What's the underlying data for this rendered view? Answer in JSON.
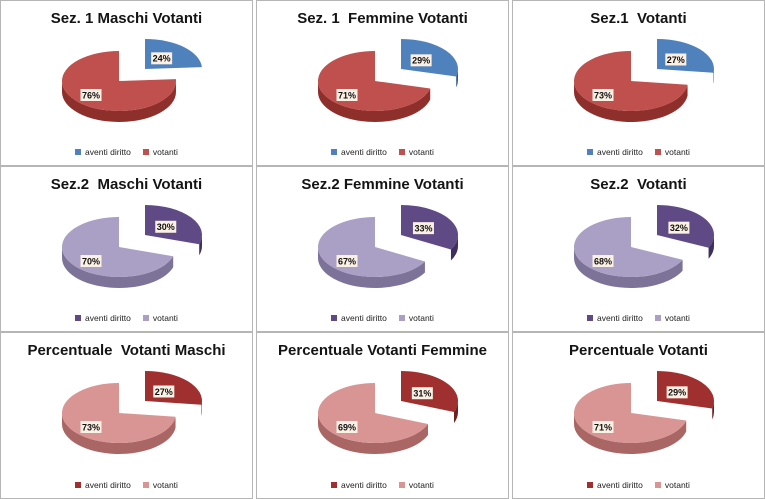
{
  "colors": {
    "row1": {
      "aventi": "#4f81bd",
      "aventi_side": "#2f5a8c",
      "votanti": "#c0504d",
      "votanti_side": "#8f2f2c"
    },
    "row2": {
      "aventi": "#604a86",
      "aventi_side": "#3f2f5c",
      "votanti": "#aa9fc5",
      "votanti_side": "#7d7398"
    },
    "row3": {
      "aventi": "#a0302f",
      "aventi_side": "#6f1f1e",
      "votanti": "#d99594",
      "votanti_side": "#a96665"
    }
  },
  "chart_data": [
    {
      "type": "pie",
      "title": "Sez. 1 Maschi Votanti",
      "categories": [
        "aventi diritto",
        "votanti"
      ],
      "values": [
        24,
        76
      ],
      "labels": [
        "24%",
        "76%"
      ],
      "palette": "row1"
    },
    {
      "type": "pie",
      "title": "Sez. 1  Femmine Votanti",
      "categories": [
        "aventi diritto",
        "votanti"
      ],
      "values": [
        29,
        71
      ],
      "labels": [
        "29%",
        "71%"
      ],
      "palette": "row1"
    },
    {
      "type": "pie",
      "title": "Sez.1  Votanti",
      "categories": [
        "aventi diritto",
        "votanti"
      ],
      "values": [
        27,
        73
      ],
      "labels": [
        "27%",
        "73%"
      ],
      "palette": "row1"
    },
    {
      "type": "pie",
      "title": "Sez.2  Maschi Votanti",
      "categories": [
        "aventi diritto",
        "votanti"
      ],
      "values": [
        30,
        70
      ],
      "labels": [
        "30%",
        "70%"
      ],
      "palette": "row2"
    },
    {
      "type": "pie",
      "title": "Sez.2 Femmine Votanti",
      "categories": [
        "aventi diritto",
        "votanti"
      ],
      "values": [
        33,
        67
      ],
      "labels": [
        "33%",
        "67%"
      ],
      "palette": "row2"
    },
    {
      "type": "pie",
      "title": "Sez.2  Votanti",
      "categories": [
        "aventi diritto",
        "votanti"
      ],
      "values": [
        32,
        68
      ],
      "labels": [
        "32%",
        "68%"
      ],
      "palette": "row2"
    },
    {
      "type": "pie",
      "title": "Percentuale  Votanti Maschi",
      "categories": [
        "aventi diritto",
        "votanti"
      ],
      "values": [
        27,
        73
      ],
      "labels": [
        "27%",
        "73%"
      ],
      "palette": "row3"
    },
    {
      "type": "pie",
      "title": "Percentuale Votanti Femmine",
      "categories": [
        "aventi diritto",
        "votanti"
      ],
      "values": [
        31,
        69
      ],
      "labels": [
        "31%",
        "69%"
      ],
      "palette": "row3"
    },
    {
      "type": "pie",
      "title": "Percentuale Votanti",
      "categories": [
        "aventi diritto",
        "votanti"
      ],
      "values": [
        29,
        71
      ],
      "labels": [
        "29%",
        "71%"
      ],
      "palette": "row3"
    }
  ]
}
